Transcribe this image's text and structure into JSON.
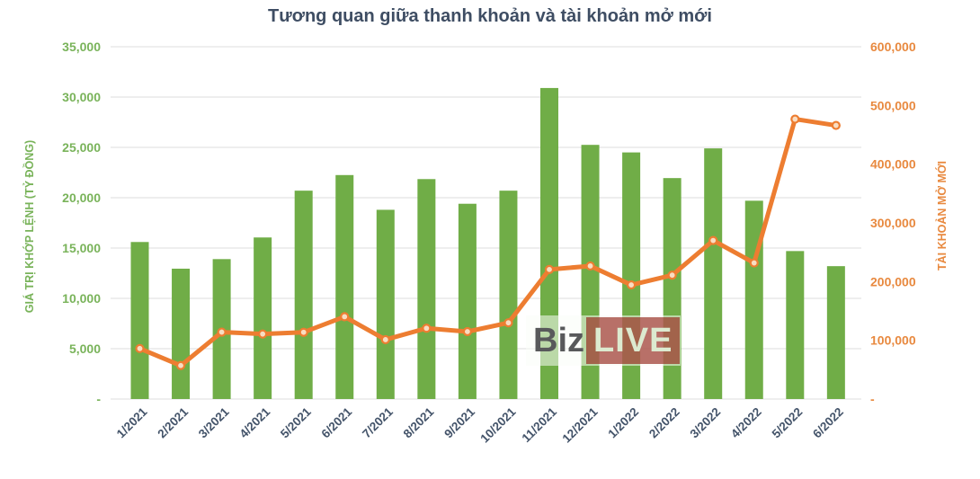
{
  "chart_data": {
    "type": "combo_bar_line",
    "title": "Tương quan giữa thanh khoản và tài khoản mở mới",
    "categories": [
      "1/2021",
      "2/2021",
      "3/2021",
      "4/2021",
      "5/2021",
      "6/2021",
      "7/2021",
      "8/2021",
      "9/2021",
      "10/2021",
      "11/2021",
      "12/2021",
      "1/2022",
      "2/2022",
      "3/2022",
      "4/2022",
      "5/2022",
      "6/2022"
    ],
    "series": [
      {
        "name": "GIÁ TRỊ KHỚP LỆNH (TỶ ĐỒNG)",
        "type": "bar",
        "axis": "left",
        "color": "#70ad47",
        "values": [
          15600,
          12950,
          13900,
          16050,
          20700,
          22250,
          18800,
          21850,
          19400,
          20700,
          30900,
          25250,
          24500,
          21950,
          24900,
          19700,
          14700,
          13200
        ]
      },
      {
        "name": "TÀI KHOẢN MỞ MỚI",
        "type": "line",
        "axis": "right",
        "color": "#ed7d31",
        "marker_fill": "#f9ddc2",
        "values": [
          86000,
          57000,
          113900,
          110700,
          113700,
          140200,
          101100,
          120500,
          114800,
          129800,
          220600,
          226600,
          194300,
          210900,
          270000,
          231800,
          476700,
          466000
        ]
      }
    ],
    "left_axis": {
      "label": "GIÁ TRỊ KHỚP LỆNH (TỶ ĐỒNG)",
      "color": "#79b35a",
      "min": 0,
      "max": 35000,
      "step": 5000,
      "tick_labels": [
        "-",
        "5,000",
        "10,000",
        "15,000",
        "20,000",
        "25,000",
        "30,000",
        "35,000"
      ]
    },
    "right_axis": {
      "label": "TÀI KHOẢN MỞ MỚI",
      "color": "#e8893f",
      "min": 0,
      "max": 600000,
      "step": 100000,
      "tick_labels": [
        "-",
        "100,000",
        "200,000",
        "300,000",
        "400,000",
        "500,000",
        "600,000"
      ]
    },
    "x_axis": {
      "label_color": "#44546a",
      "rotation": -45
    },
    "grid": true,
    "gridline_color": "#dcdcdc",
    "legend": "none"
  },
  "watermark": {
    "part1": "Biz",
    "part2": "LIVE"
  }
}
